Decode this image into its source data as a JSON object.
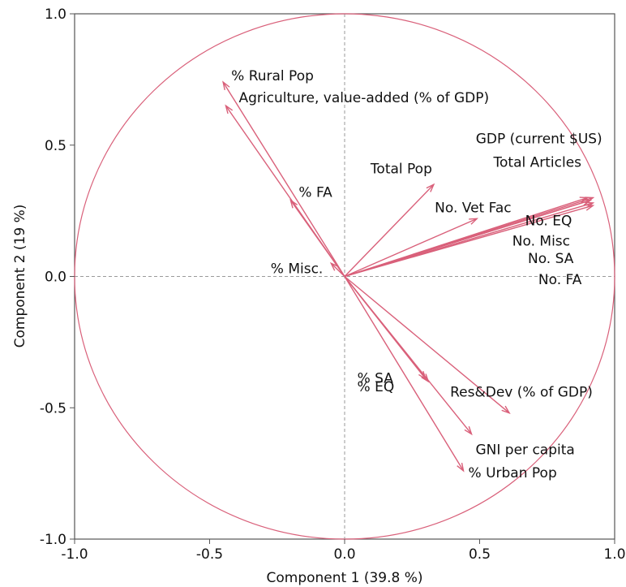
{
  "colors": {
    "vector": "#d9607a",
    "circle": "#d9607a",
    "axis": "#555555",
    "dashed": "#9a9a9a",
    "text": "#111111"
  },
  "chart_data": {
    "type": "scatter",
    "subtype": "pca-loading-plot",
    "title": "",
    "xlabel": "Component 1  (39.8 %)",
    "ylabel": "Component 2  (19 %)",
    "xlim": [
      -1.0,
      1.0
    ],
    "ylim": [
      -1.0,
      1.0
    ],
    "xticks": [
      "-1.0",
      "-0.5",
      "0.0",
      "0.5",
      "1.0"
    ],
    "yticks": [
      "1.0",
      "0.5",
      "0.0",
      "-0.5",
      "-1.0"
    ],
    "unit_circle": true,
    "reference_lines": [
      0,
      0
    ],
    "grid": false,
    "legend": "none",
    "vectors": [
      {
        "label": "% Rural Pop",
        "x": -0.45,
        "y": 0.74
      },
      {
        "label": "Agriculture, value-added (% of GDP)",
        "x": -0.44,
        "y": 0.65
      },
      {
        "label": "% FA",
        "x": -0.2,
        "y": 0.29
      },
      {
        "label": "% Misc.",
        "x": -0.05,
        "y": 0.05
      },
      {
        "label": "Total Pop",
        "x": 0.33,
        "y": 0.35
      },
      {
        "label": "No. Vet Fac",
        "x": 0.49,
        "y": 0.22
      },
      {
        "label": "GDP (current $US)",
        "x": 0.9,
        "y": 0.3
      },
      {
        "label": "Total Articles",
        "x": 0.91,
        "y": 0.29
      },
      {
        "label": "No. EQ",
        "x": 0.92,
        "y": 0.3
      },
      {
        "label": "No. Misc",
        "x": 0.91,
        "y": 0.29
      },
      {
        "label": "No. SA",
        "x": 0.92,
        "y": 0.28
      },
      {
        "label": "No. FA",
        "x": 0.92,
        "y": 0.27
      },
      {
        "label": "% SA",
        "x": 0.3,
        "y": -0.39
      },
      {
        "label": "% EQ",
        "x": 0.31,
        "y": -0.4
      },
      {
        "label": "Res&Dev (% of GDP)",
        "x": 0.61,
        "y": -0.52
      },
      {
        "label": "GNI per capita",
        "x": 0.47,
        "y": -0.6
      },
      {
        "label": "% Urban Pop",
        "x": 0.44,
        "y": -0.74
      }
    ]
  }
}
